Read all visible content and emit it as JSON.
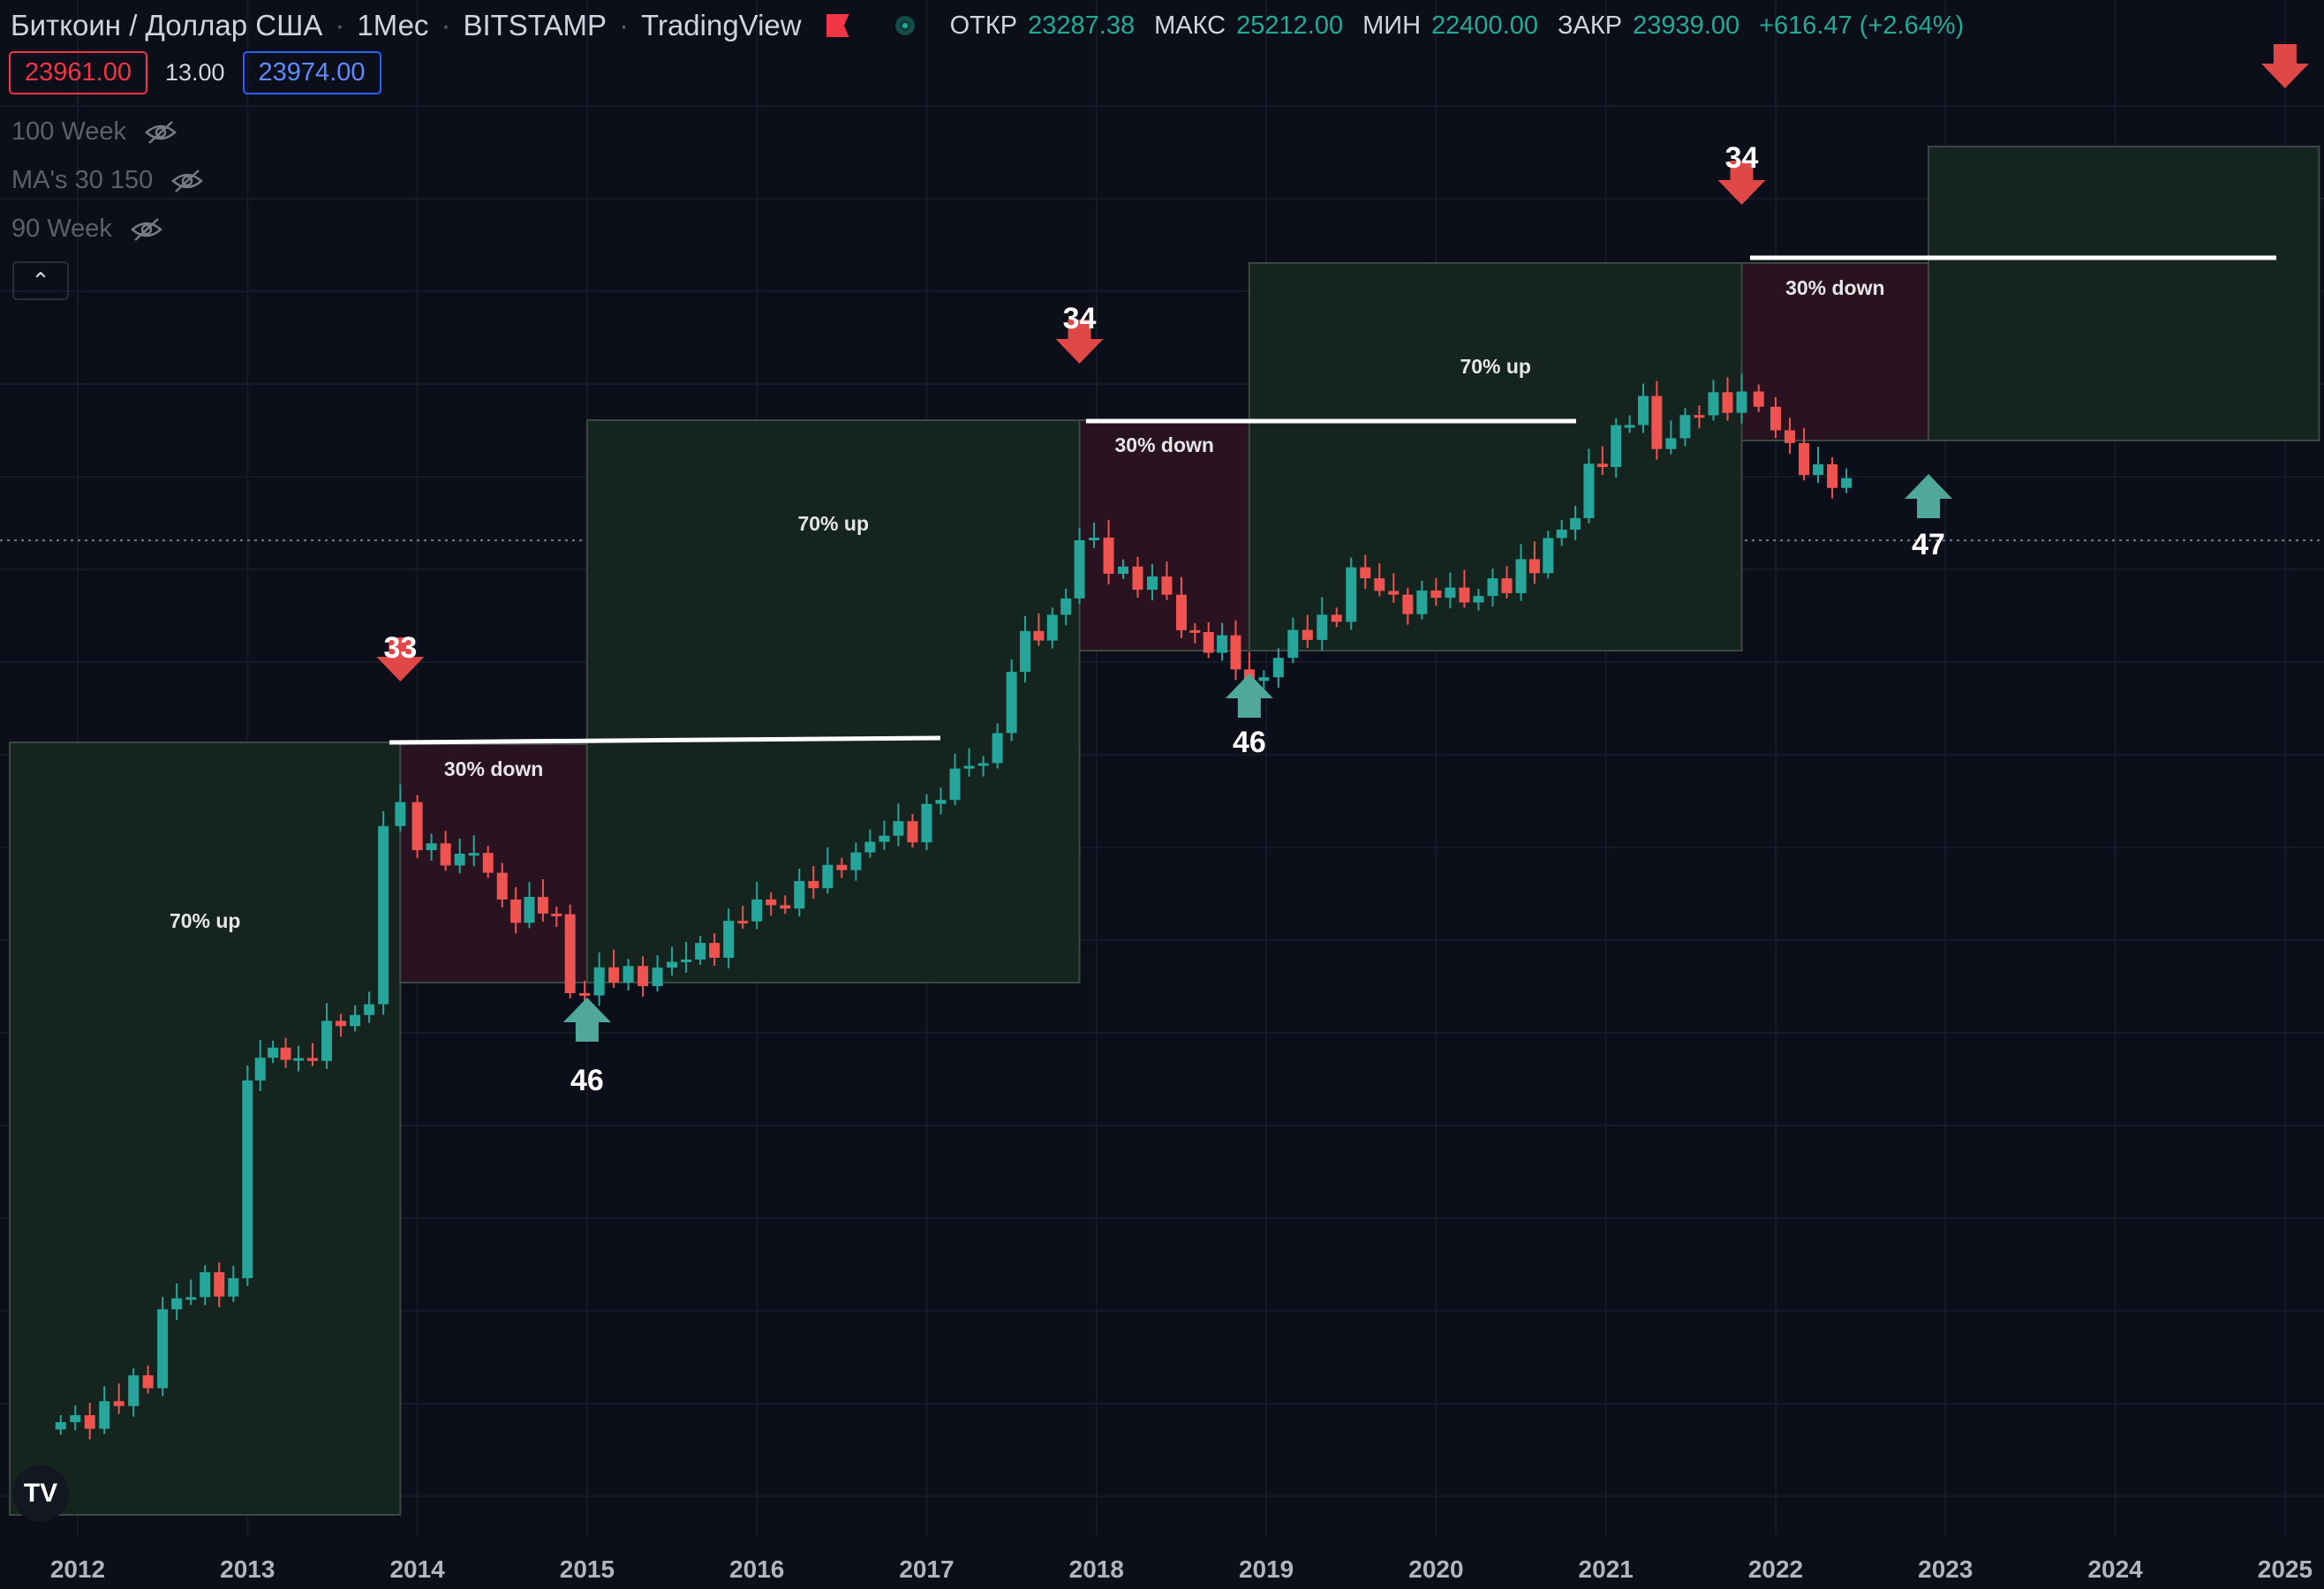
{
  "header": {
    "symbol": "Биткоин / Доллар США",
    "interval": "1Мес",
    "exchange": "BITSTAMP",
    "source": "TradingView",
    "ohlc": {
      "open_label": "ОТКР",
      "open": "23287.38",
      "high_label": "МАКС",
      "high": "25212.00",
      "low_label": "МИН",
      "low": "22400.00",
      "close_label": "ЗАКР",
      "close": "23939.00",
      "change": "+616.47 (+2.64%)"
    }
  },
  "prices": {
    "bid": "23961.00",
    "spread": "13.00",
    "ask": "23974.00"
  },
  "indicators": [
    {
      "name": "100 Week"
    },
    {
      "name": "MA's 30 150"
    },
    {
      "name": "90 Week"
    }
  ],
  "colors": {
    "background": "#0c0e1a",
    "up_candle": "#26a69a",
    "down_candle": "#ef5350",
    "up_box": "#1c3a2e",
    "down_box": "#4a1a26",
    "arrow_down": "#e04848",
    "arrow_up": "#4fa89a"
  },
  "chart_data": {
    "type": "candlestick",
    "x_ticks": [
      "2012",
      "2013",
      "2014",
      "2015",
      "2016",
      "2017",
      "2018",
      "2019",
      "2020",
      "2021",
      "2022",
      "2023",
      "2024",
      "2025"
    ],
    "current_price": 23939,
    "grid": true,
    "candles_approx_close_by_quarter": [
      {
        "t": 2011.9,
        "o": 5,
        "c": 3
      },
      {
        "t": 2012.5,
        "o": 5,
        "c": 10
      },
      {
        "t": 2013.0,
        "o": 13,
        "c": 90
      },
      {
        "t": 2013.3,
        "o": 120,
        "c": 100
      },
      {
        "t": 2013.8,
        "o": 200,
        "c": 1000
      },
      {
        "t": 2014.0,
        "o": 1000,
        "c": 800
      },
      {
        "t": 2014.5,
        "o": 600,
        "c": 450
      },
      {
        "t": 2014.9,
        "o": 380,
        "c": 200
      },
      {
        "t": 2015.5,
        "o": 250,
        "c": 240
      },
      {
        "t": 2016.0,
        "o": 420,
        "c": 430
      },
      {
        "t": 2016.5,
        "o": 600,
        "c": 700
      },
      {
        "t": 2017.0,
        "o": 1000,
        "c": 1100
      },
      {
        "t": 2017.5,
        "o": 2500,
        "c": 4300
      },
      {
        "t": 2017.9,
        "o": 10000,
        "c": 14000
      },
      {
        "t": 2018.5,
        "o": 7500,
        "c": 6500
      },
      {
        "t": 2018.9,
        "o": 4000,
        "c": 3700
      },
      {
        "t": 2019.5,
        "o": 8500,
        "c": 10000
      },
      {
        "t": 2020.0,
        "o": 7200,
        "c": 8500
      },
      {
        "t": 2020.5,
        "o": 9000,
        "c": 11000
      },
      {
        "t": 2020.9,
        "o": 19000,
        "c": 29000
      },
      {
        "t": 2021.3,
        "o": 58000,
        "c": 37000
      },
      {
        "t": 2021.8,
        "o": 61000,
        "c": 57000
      },
      {
        "t": 2022.0,
        "o": 46000,
        "c": 38000
      },
      {
        "t": 2022.5,
        "o": 20000,
        "c": 23939
      }
    ],
    "annotations": [
      {
        "type": "zone",
        "label": "70% up",
        "color": "green",
        "x_from": 2011.6,
        "x_to": 2013.9
      },
      {
        "type": "zone",
        "label": "30% down",
        "color": "red",
        "x_from": 2013.9,
        "x_to": 2015.0
      },
      {
        "type": "zone",
        "label": "70% up",
        "color": "green",
        "x_from": 2015.0,
        "x_to": 2017.9
      },
      {
        "type": "zone",
        "label": "30% down",
        "color": "red",
        "x_from": 2017.9,
        "x_to": 2018.9
      },
      {
        "type": "zone",
        "label": "70% up",
        "color": "green",
        "x_from": 2018.9,
        "x_to": 2021.8
      },
      {
        "type": "zone",
        "label": "30% down",
        "color": "red",
        "x_from": 2021.8,
        "x_to": 2022.9
      },
      {
        "type": "zone",
        "label": "",
        "color": "green",
        "x_from": 2022.9,
        "x_to": 2025.2
      },
      {
        "type": "arrow_down",
        "label": "33",
        "x": 2013.9
      },
      {
        "type": "arrow_up",
        "label": "46",
        "x": 2015.0
      },
      {
        "type": "arrow_down",
        "label": "34",
        "x": 2017.9
      },
      {
        "type": "arrow_up",
        "label": "46",
        "x": 2018.9
      },
      {
        "type": "arrow_down",
        "label": "34",
        "x": 2021.8
      },
      {
        "type": "arrow_up",
        "label": "47",
        "x": 2022.9
      },
      {
        "type": "arrow_down",
        "label": "",
        "x": 2025.0
      }
    ]
  }
}
